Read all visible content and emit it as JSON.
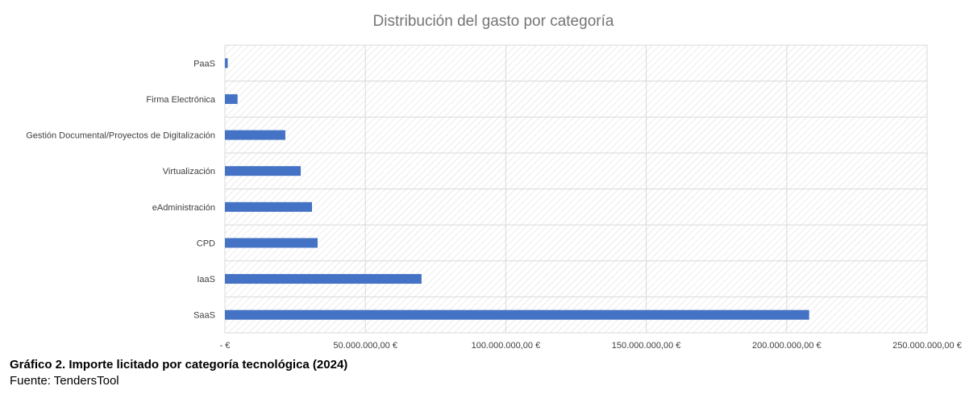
{
  "chart_data": {
    "type": "bar",
    "orientation": "horizontal",
    "title": "Distribución del gasto por categoría",
    "categories": [
      "SaaS",
      "IaaS",
      "CPD",
      "eAdministración",
      "Virtualización",
      "Gestión Documental/Proyectos de Digitalización",
      "Firma Electrónica",
      "PaaS"
    ],
    "values": [
      208000000,
      70000000,
      33000000,
      31000000,
      27000000,
      21500000,
      4500000,
      1000000
    ],
    "xlim": [
      0,
      250000000
    ],
    "xticks": [
      0,
      50000000,
      100000000,
      150000000,
      200000000,
      250000000
    ],
    "xtick_labels": [
      "-   €",
      "50.000.000,00 €",
      "100.000.000,00 €",
      "150.000.000,00 €",
      "200.000.000,00 €",
      "250.000.000,00 €"
    ],
    "xlabel": "",
    "ylabel": "",
    "grid": true,
    "legend": "none",
    "bar_color": "#4472c4",
    "plot_background": "diagonal hatch"
  },
  "caption": {
    "title": "Gráfico 2. Importe licitado por categoría tecnológica (2024)",
    "source": "Fuente: TendersTool"
  }
}
